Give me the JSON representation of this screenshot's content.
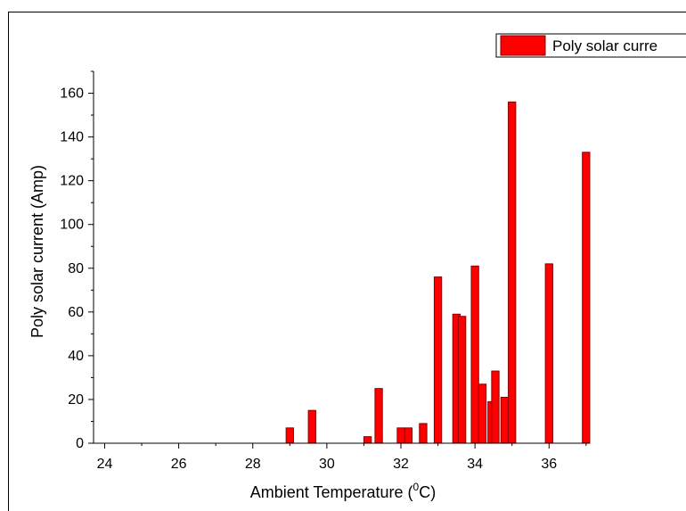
{
  "chart_data": {
    "type": "bar",
    "title": "",
    "xlabel": "Ambient Temperature (",
    "xlabel_sup": "0",
    "xlabel_tail": "C)",
    "ylabel": "Poly solar current (Amp)",
    "xlim": [
      23.7,
      37.1
    ],
    "ylim": [
      0,
      170
    ],
    "x_ticks": [
      24,
      26,
      28,
      30,
      32,
      34,
      36
    ],
    "y_ticks": [
      0,
      20,
      40,
      60,
      80,
      100,
      120,
      140,
      160
    ],
    "x_tick_labels": [
      "24",
      "26",
      "28",
      "30",
      "32",
      "34",
      "36"
    ],
    "y_tick_labels": [
      "0",
      "20",
      "40",
      "60",
      "80",
      "100",
      "120",
      "140",
      "160"
    ],
    "grid": false,
    "legend_position": "top-right",
    "bar_width": 0.2,
    "series": [
      {
        "name": "Poly solar curre",
        "color": "#ff0000",
        "edge_color": "#8b0000",
        "x": [
          29.0,
          29.6,
          31.1,
          31.4,
          32.0,
          32.2,
          32.6,
          33.0,
          33.5,
          33.65,
          34.0,
          34.2,
          34.45,
          34.55,
          34.8,
          35.0,
          36.0,
          37.0
        ],
        "values": [
          7,
          15,
          3,
          25,
          7,
          7,
          9,
          76,
          59,
          58,
          81,
          27,
          19,
          33,
          21,
          156,
          82,
          133
        ]
      }
    ]
  }
}
